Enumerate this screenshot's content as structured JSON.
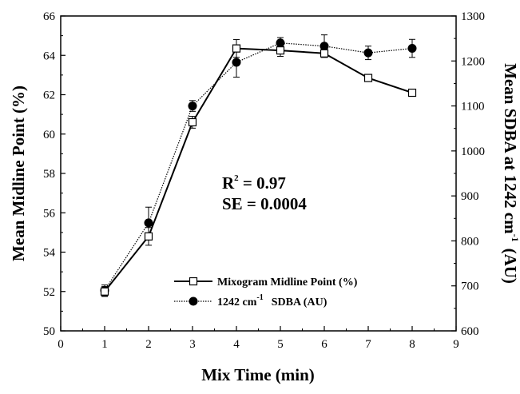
{
  "chart_data": {
    "type": "line",
    "xlabel": "Mix Time (min)",
    "ylabel_left": "Mean Midline Point (%)",
    "ylabel_right_main": "Mean SDBA at 1242 cm",
    "ylabel_right_sup": "-1",
    "ylabel_right_unit": "(AU)",
    "xlim": [
      0,
      9
    ],
    "ylim_left": [
      50,
      66
    ],
    "ylim_right": [
      600,
      1300
    ],
    "x_ticks": [
      "0",
      "1",
      "2",
      "3",
      "4",
      "5",
      "6",
      "7",
      "8",
      "9"
    ],
    "y_left_ticks": [
      "50",
      "52",
      "54",
      "56",
      "58",
      "60",
      "62",
      "64",
      "66"
    ],
    "y_right_ticks": [
      "600",
      "700",
      "800",
      "900",
      "1000",
      "1100",
      "1200",
      "1300"
    ],
    "annotation": {
      "r2_base": "R",
      "r2_sup": "2",
      "r2_value": " = 0.97",
      "se": "SE = 0.0004"
    },
    "series": [
      {
        "name": "Mixogram Midline Point (%)",
        "axis": "left",
        "marker": "open-square",
        "line": "solid",
        "x": [
          1,
          2,
          3,
          4,
          5,
          6,
          7,
          8
        ],
        "values": [
          52.0,
          54.8,
          60.6,
          64.35,
          64.25,
          64.1,
          62.85,
          62.1
        ],
        "errors": [
          0.25,
          0.45,
          0.3,
          0.45,
          0.3,
          0.2,
          0.15,
          0.1
        ]
      },
      {
        "name_prefix": "1242 cm",
        "name_sup": "-1",
        "name_suffix": "SDBA (AU)",
        "axis": "right",
        "marker": "filled-circle",
        "line": "dotted",
        "x": [
          1,
          2,
          3,
          4,
          5,
          6,
          7,
          8
        ],
        "values": [
          690,
          840,
          1100,
          1197,
          1240,
          1233,
          1218,
          1228
        ],
        "errors": [
          12,
          35,
          12,
          33,
          12,
          25,
          15,
          20
        ]
      }
    ]
  }
}
